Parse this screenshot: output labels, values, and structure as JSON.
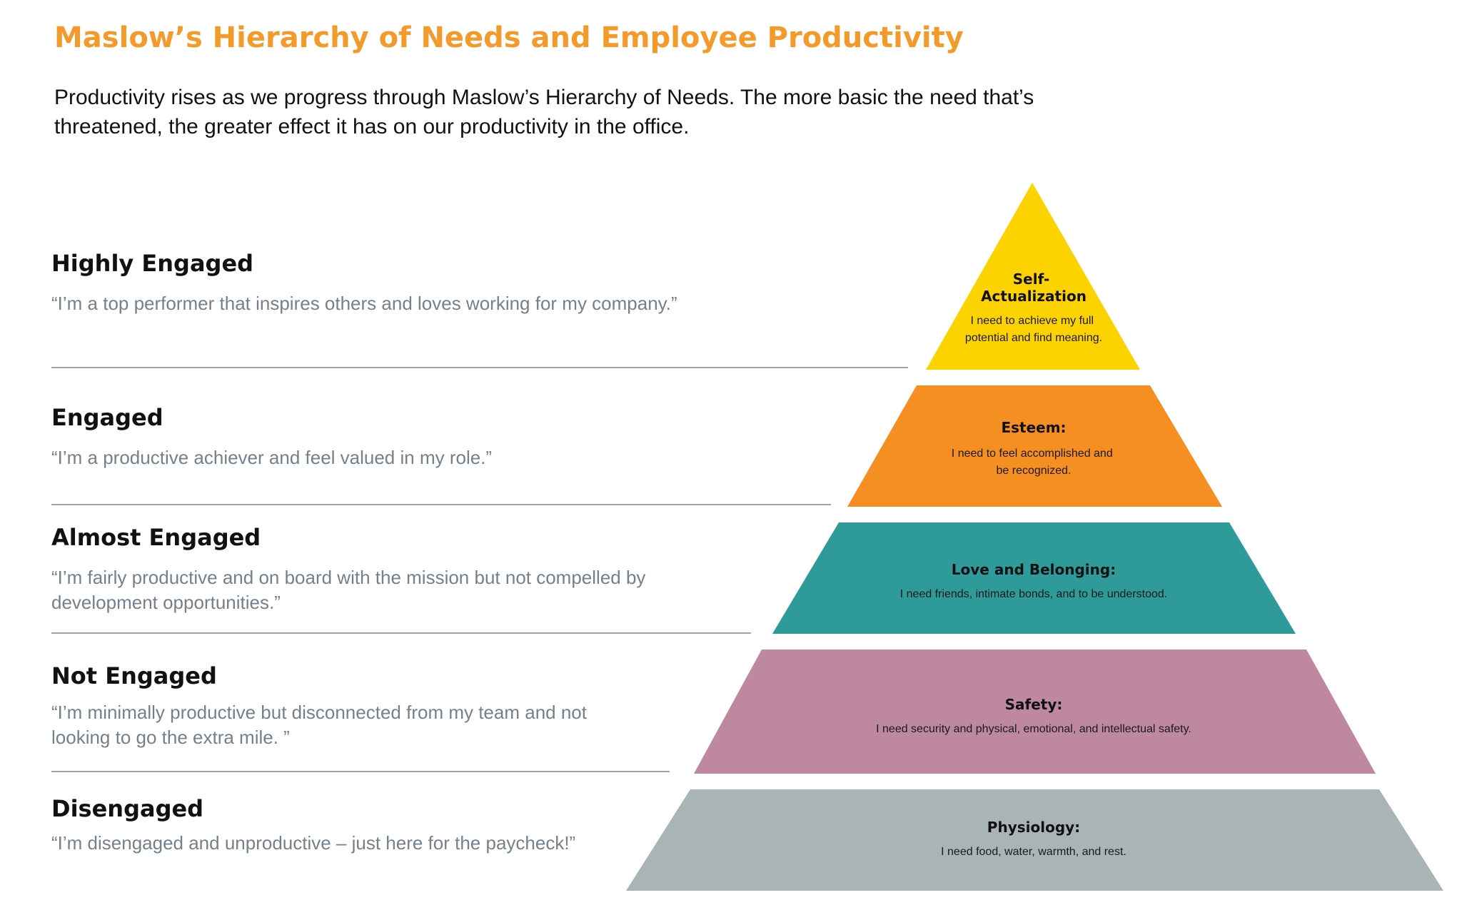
{
  "title": "Maslow’s Hierarchy of Needs and Employee Productivity",
  "subtitle": "Productivity rises as we progress through Maslow’s Hierarchy of Needs. The more basic the need that’s threatened, the greater effect it has on our productivity in the office.",
  "levels": [
    {
      "heading": "Highly Engaged",
      "quote": "“I’m a top performer that inspires others and loves working for my company.”"
    },
    {
      "heading": "Engaged",
      "quote": "“I’m a productive achiever and feel valued in my role.”"
    },
    {
      "heading": "Almost Engaged",
      "quote": "“I’m fairly productive and on board with the mission but not compelled by development opportunities.”"
    },
    {
      "heading": "Not Engaged",
      "quote": "“I’m minimally productive but disconnected from my team and not looking to go the extra mile. ”"
    },
    {
      "heading": "Disengaged",
      "quote": "“I’m disengaged and unproductive – just here for the paycheck!”"
    }
  ],
  "pyramid": [
    {
      "name_lines": [
        "Self-",
        "Actualization"
      ],
      "desc_lines": [
        "I need to achieve my full",
        "potential and find meaning."
      ],
      "color": "#fdd201"
    },
    {
      "name_lines": [
        "Esteem:"
      ],
      "desc_lines": [
        "I need to feel accomplished and",
        "be recognized."
      ],
      "color": "#f68f22"
    },
    {
      "name_lines": [
        "Love and Belonging:"
      ],
      "desc_lines": [
        "I need friends, intimate bonds, and to be understood."
      ],
      "color": "#2e9a99"
    },
    {
      "name_lines": [
        "Safety:"
      ],
      "desc_lines": [
        "I need security and physical, emotional, and intellectual safety."
      ],
      "color": "#be88a1"
    },
    {
      "name_lines": [
        "Physiology:"
      ],
      "desc_lines": [
        "I need food, water, warmth, and rest."
      ],
      "color": "#a8b4b5"
    }
  ]
}
